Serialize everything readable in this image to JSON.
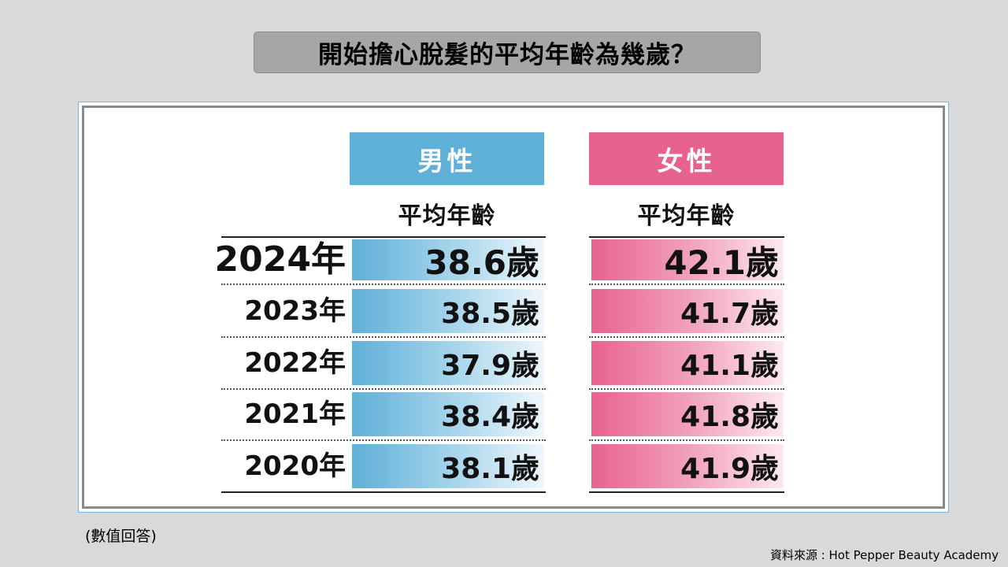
{
  "title": "開始擔心脫髮的平均年齡為幾歲？",
  "note": "(數值回答)",
  "source": "資料來源 : Hot Pepper Beauty Academy",
  "colors": {
    "male": "#5fb0d9",
    "female": "#e8628f",
    "background": "#d9d9d9",
    "title_box": "#a6a6a6"
  },
  "chart_data": {
    "type": "table",
    "columns": [
      {
        "name": "男性",
        "subheader": "平均年齡"
      },
      {
        "name": "女性",
        "subheader": "平均年齡"
      }
    ],
    "rows": [
      {
        "year": "2024年",
        "male": "38.6歲",
        "female": "42.1歲"
      },
      {
        "year": "2023年",
        "male": "38.5歲",
        "female": "41.7歲"
      },
      {
        "year": "2022年",
        "male": "37.9歲",
        "female": "41.1歲"
      },
      {
        "year": "2021年",
        "male": "38.4歲",
        "female": "41.8歲"
      },
      {
        "year": "2020年",
        "male": "38.1歲",
        "female": "41.9歲"
      }
    ],
    "male_values": [
      38.6,
      38.5,
      37.9,
      38.4,
      38.1
    ],
    "female_values": [
      42.1,
      41.7,
      41.1,
      41.8,
      41.9
    ],
    "unit": "歲"
  }
}
